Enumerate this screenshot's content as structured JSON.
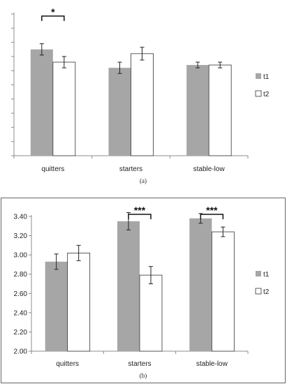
{
  "chart_data": [
    {
      "type": "bar",
      "panel_label": "(a)",
      "categories": [
        "quitters",
        "starters",
        "stable-low"
      ],
      "series": [
        {
          "name": "t1",
          "color": "#a6a6a6",
          "values": [
            0.75,
            0.62,
            0.64
          ],
          "errors": [
            0.04,
            0.04,
            0.02
          ]
        },
        {
          "name": "t2",
          "color": "#ffffff",
          "values": [
            0.66,
            0.72,
            0.64
          ],
          "errors": [
            0.04,
            0.045,
            0.02
          ]
        }
      ],
      "ylim": [
        0,
        1
      ],
      "yticks": [],
      "tick_count": 10,
      "significance": [
        {
          "category_index": 0,
          "label": "*"
        }
      ],
      "legend_position": "right"
    },
    {
      "type": "bar",
      "panel_label": "(b)",
      "categories": [
        "quitters",
        "starters",
        "stable-low"
      ],
      "series": [
        {
          "name": "t1",
          "color": "#a6a6a6",
          "values": [
            2.93,
            3.35,
            3.38
          ],
          "errors": [
            0.08,
            0.09,
            0.05
          ]
        },
        {
          "name": "t2",
          "color": "#ffffff",
          "values": [
            3.02,
            2.79,
            3.24
          ],
          "errors": [
            0.08,
            0.09,
            0.05
          ]
        }
      ],
      "ylim": [
        2.0,
        3.4
      ],
      "yticks": [
        "2.00",
        "2.20",
        "2.40",
        "2.60",
        "2.80",
        "3.00",
        "3.20",
        "3.40"
      ],
      "significance": [
        {
          "category_index": 1,
          "label": "***"
        },
        {
          "category_index": 2,
          "label": "***"
        }
      ],
      "legend_position": "right"
    }
  ]
}
